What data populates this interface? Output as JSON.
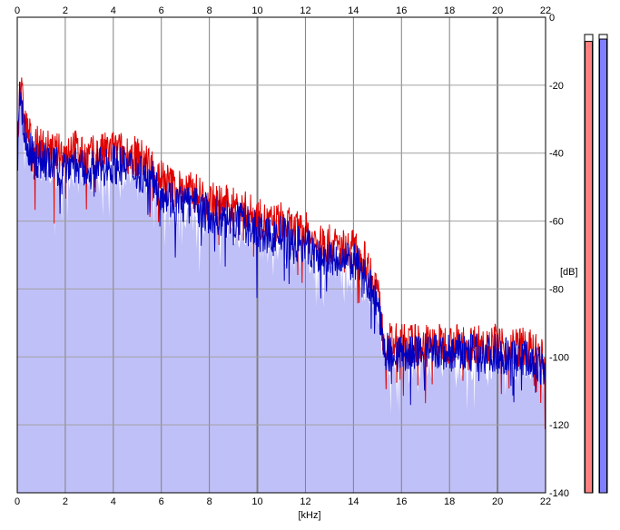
{
  "chart_data": {
    "type": "line",
    "title": "",
    "xlabel": "[kHz]",
    "ylabel": "[dB]",
    "xlim": [
      0,
      22
    ],
    "ylim": [
      -140,
      0
    ],
    "x_ticks": [
      "0",
      "2",
      "4",
      "6",
      "8",
      "10",
      "12",
      "14",
      "16",
      "18",
      "20",
      "22"
    ],
    "y_ticks": [
      "0",
      "-20",
      "-40",
      "-60",
      "-80",
      "-100",
      "-120",
      "-140"
    ],
    "grid": true,
    "colors": {
      "series_red": "#e00000",
      "series_blue": "#0000c0",
      "fill": "#c0c0f8",
      "grid": "#808080",
      "meter_red": "#ff8080",
      "meter_blue": "#8080ff"
    },
    "series": [
      {
        "color": "red",
        "x": [
          0.0,
          0.1,
          0.2,
          0.3,
          0.5,
          0.7,
          1.0,
          1.5,
          2.0,
          2.3,
          2.6,
          3.0,
          3.5,
          4.0,
          4.5,
          5.0,
          5.5,
          6.0,
          6.5,
          7.0,
          7.5,
          8.0,
          8.5,
          9.0,
          9.5,
          10.0,
          10.5,
          11.0,
          11.5,
          12.0,
          12.5,
          13.0,
          13.5,
          14.0,
          14.5,
          14.8,
          15.0,
          15.1,
          15.2,
          15.3,
          15.5,
          16.0,
          16.5,
          17.0,
          17.5,
          18.0,
          18.5,
          19.0,
          19.5,
          20.0,
          20.5,
          21.0,
          21.5,
          22.0
        ],
        "y": [
          -40,
          -18,
          -24,
          -30,
          -35,
          -38,
          -38,
          -40,
          -40,
          -37,
          -41,
          -41,
          -40,
          -39,
          -40,
          -41,
          -43,
          -47,
          -50,
          -51,
          -52,
          -54,
          -55,
          -56,
          -57,
          -59,
          -61,
          -60,
          -63,
          -63,
          -67,
          -67,
          -68,
          -68,
          -72,
          -76,
          -79,
          -86,
          -92,
          -95,
          -96,
          -96,
          -96,
          -96,
          -96,
          -96,
          -96,
          -96,
          -96,
          -96,
          -97,
          -97,
          -98,
          -102
        ]
      },
      {
        "color": "blue",
        "x": [
          0.0,
          0.1,
          0.2,
          0.3,
          0.5,
          0.7,
          1.0,
          1.5,
          2.0,
          2.3,
          2.6,
          3.0,
          3.5,
          4.0,
          4.5,
          5.0,
          5.5,
          6.0,
          6.5,
          7.0,
          7.5,
          8.0,
          8.5,
          9.0,
          9.5,
          10.0,
          10.5,
          11.0,
          11.5,
          12.0,
          12.5,
          13.0,
          13.5,
          14.0,
          14.5,
          14.8,
          15.0,
          15.1,
          15.2,
          15.3,
          15.5,
          16.0,
          16.5,
          17.0,
          17.5,
          18.0,
          18.5,
          19.0,
          19.5,
          20.0,
          20.5,
          21.0,
          21.5,
          22.0
        ],
        "y": [
          -45,
          -20,
          -28,
          -34,
          -39,
          -42,
          -42,
          -44,
          -44,
          -42,
          -45,
          -45,
          -44,
          -43,
          -44,
          -45,
          -47,
          -51,
          -54,
          -55,
          -56,
          -58,
          -59,
          -60,
          -61,
          -63,
          -65,
          -64,
          -67,
          -67,
          -71,
          -71,
          -72,
          -72,
          -76,
          -80,
          -83,
          -89,
          -95,
          -98,
          -99,
          -99,
          -99,
          -99,
          -99,
          -99,
          -99,
          -99,
          -99,
          -99,
          -100,
          -100,
          -101,
          -105
        ]
      }
    ],
    "meters": [
      {
        "name": "left-level-meter",
        "color": "#ff8080",
        "level": 0.985
      },
      {
        "name": "right-level-meter",
        "color": "#8080ff",
        "level": 0.99
      }
    ]
  }
}
